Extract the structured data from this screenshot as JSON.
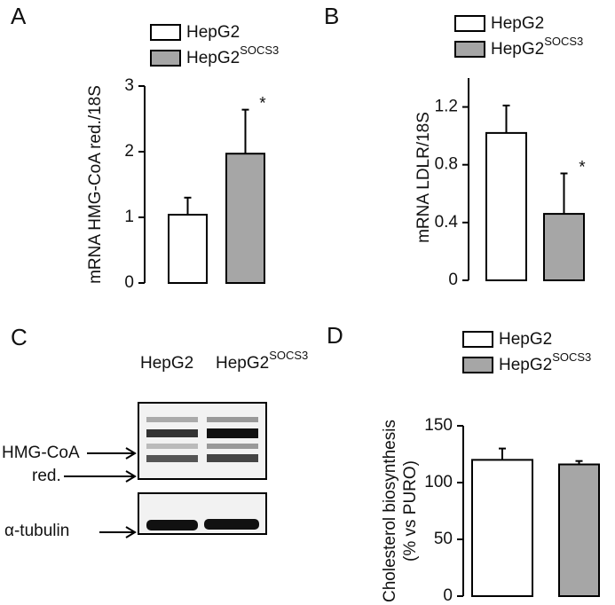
{
  "chart_data": [
    {
      "type": "bar",
      "panel_label": "A",
      "ylabel": [
        "mRNA HMG-CoA red./18S"
      ],
      "categories": [
        null
      ],
      "ylim": [
        0,
        3
      ],
      "yticks": [
        0,
        1,
        2,
        3
      ],
      "series": [
        {
          "name": "HepG2",
          "color": "#ffffff",
          "values": [
            1.04
          ],
          "errors": [
            0.26
          ]
        },
        {
          "name": "HepG2",
          "name_superscript": "SOCS3",
          "color": "#a6a6a6",
          "values": [
            1.97
          ],
          "errors": [
            0.67
          ],
          "mark": "*"
        }
      ]
    },
    {
      "type": "bar",
      "panel_label": "B",
      "ylabel": [
        "mRNA LDLR/18S"
      ],
      "categories": [
        null
      ],
      "ylim": [
        0,
        1.4
      ],
      "yticks": [
        0,
        0.4,
        0.8,
        1.2
      ],
      "series": [
        {
          "name": "HepG2",
          "color": "#ffffff",
          "values": [
            1.02
          ],
          "errors": [
            0.19
          ]
        },
        {
          "name": "HepG2",
          "name_superscript": "SOCS3",
          "color": "#a6a6a6",
          "values": [
            0.46
          ],
          "errors": [
            0.28
          ],
          "mark": "*"
        }
      ]
    },
    {
      "type": "bar",
      "panel_label": "D",
      "ylabel": [
        "Cholesterol biosynthesis",
        "(% vs PURO)"
      ],
      "categories": [
        null
      ],
      "ylim": [
        0,
        150
      ],
      "yticks": [
        0,
        50,
        100,
        150
      ],
      "series": [
        {
          "name": "HepG2",
          "color": "#ffffff",
          "values": [
            120
          ],
          "errors": [
            10
          ]
        },
        {
          "name": "HepG2",
          "name_superscript": "SOCS3",
          "color": "#a6a6a6",
          "values": [
            116
          ],
          "errors": [
            3
          ]
        }
      ]
    }
  ],
  "blot": {
    "panel_label": "C",
    "lanes": [
      "HepG2",
      {
        "name": "HepG2",
        "superscript": "SOCS3"
      }
    ],
    "bands": [
      "HMG-CoA",
      "red.",
      "α-tubulin"
    ]
  }
}
